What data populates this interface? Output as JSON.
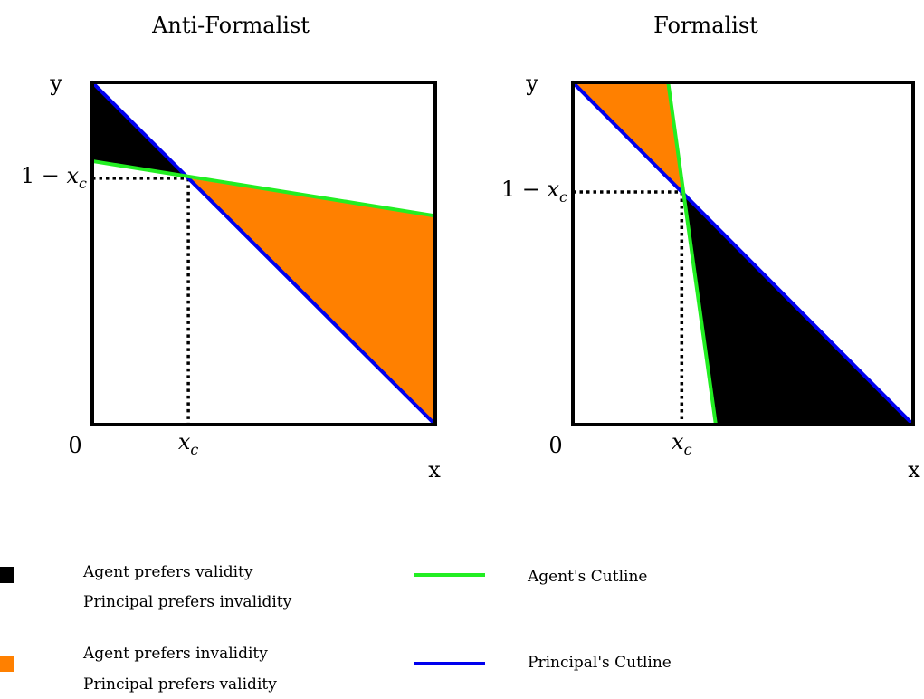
{
  "panels": [
    {
      "id": "anti-formalist",
      "title": "Anti-Formalist",
      "y_axis_label": "y",
      "x_axis_label": "x",
      "origin_label": "0",
      "xc_label_base": "x",
      "xc_label_sub": "c",
      "one_minus_xc_label_prefix": "1 − ",
      "one_minus_xc_label_base": "x",
      "one_minus_xc_label_sub": "c",
      "xc": 0.28,
      "agent_cutline": [
        [
          0,
          0.77
        ],
        [
          1,
          0.61
        ]
      ],
      "principal_cutline": [
        [
          0,
          1
        ],
        [
          1,
          0
        ]
      ],
      "black_region": [
        [
          0,
          1
        ],
        [
          0,
          0.77
        ],
        [
          0.28,
          0.72
        ]
      ],
      "orange_region": [
        [
          0.28,
          0.72
        ],
        [
          1,
          0.61
        ],
        [
          1,
          0
        ]
      ]
    },
    {
      "id": "formalist",
      "title": "Formalist",
      "y_axis_label": "y",
      "x_axis_label": "x",
      "origin_label": "0",
      "xc_label_base": "x",
      "xc_label_sub": "c",
      "one_minus_xc_label_prefix": "1 − ",
      "one_minus_xc_label_base": "x",
      "one_minus_xc_label_sub": "c",
      "xc": 0.32,
      "agent_cutline": [
        [
          0.28,
          1
        ],
        [
          0.42,
          0
        ]
      ],
      "principal_cutline": [
        [
          0,
          1
        ],
        [
          1,
          0
        ]
      ],
      "orange_region": [
        [
          0,
          1
        ],
        [
          0.28,
          1
        ],
        [
          0.32,
          0.68
        ]
      ],
      "black_region": [
        [
          0.32,
          0.68
        ],
        [
          0.42,
          0
        ],
        [
          1,
          0
        ]
      ]
    }
  ],
  "legend": {
    "black_line1": "Agent prefers validity",
    "black_line2": "Principal prefers invalidity",
    "orange_line1": "Agent prefers invalidity",
    "orange_line2": "Principal prefers validity",
    "agent_cutline_label": "Agent's Cutline",
    "principal_cutline_label": "Principal's Cutline"
  },
  "colors": {
    "black_region": "#000000",
    "orange_region": "#ff8000",
    "agent_cutline": "#22ee22",
    "principal_cutline": "#0000ee",
    "frame": "#000000"
  }
}
